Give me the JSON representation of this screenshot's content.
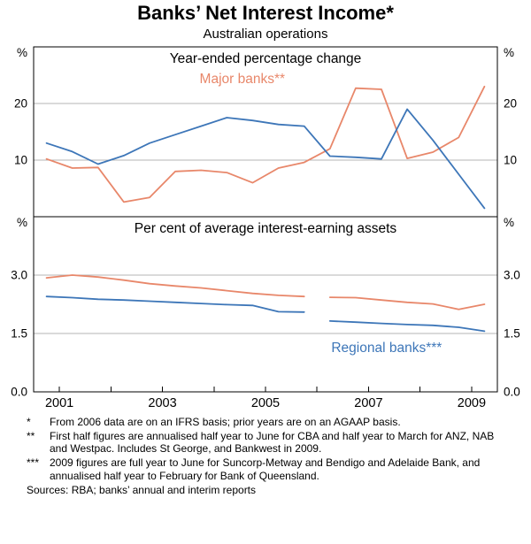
{
  "title": "Banks’ Net Interest Income*",
  "subtitle": "Australian operations",
  "colors": {
    "major_banks": "#e8876a",
    "regional_banks": "#3d76b8"
  },
  "chart_data": {
    "type": "line",
    "xlim": [
      2000.5,
      2009.5
    ],
    "x_year_ticks": [
      2001,
      2002,
      2003,
      2004,
      2005,
      2006,
      2007,
      2008,
      2009
    ],
    "x_year_labels": [
      "2001",
      "2003",
      "2005",
      "2007",
      "2009"
    ],
    "panels": [
      {
        "title": "Year-ended percentage change",
        "unit": "%",
        "ylim": [
          0,
          30
        ],
        "gridlines": [
          10,
          20
        ],
        "tick_labels": [
          {
            "value": 20,
            "label": "20"
          },
          {
            "value": 10,
            "label": "10"
          }
        ],
        "series": [
          {
            "name": "Major banks",
            "color": "#e8876a",
            "segments": [
              [
                [
                  2000.75,
                  10.2
                ],
                [
                  2001.25,
                  8.6
                ],
                [
                  2001.75,
                  8.7
                ],
                [
                  2002.25,
                  2.6
                ],
                [
                  2002.75,
                  3.4
                ],
                [
                  2003.25,
                  8.0
                ],
                [
                  2003.75,
                  8.2
                ],
                [
                  2004.25,
                  7.8
                ],
                [
                  2004.75,
                  6.0
                ],
                [
                  2005.25,
                  8.6
                ],
                [
                  2005.75,
                  9.6
                ],
                [
                  2006.25,
                  12.0
                ],
                [
                  2006.75,
                  22.7
                ],
                [
                  2007.25,
                  22.5
                ],
                [
                  2007.75,
                  10.3
                ],
                [
                  2008.25,
                  11.4
                ],
                [
                  2008.75,
                  14.0
                ],
                [
                  2009.25,
                  23.0
                ]
              ]
            ]
          },
          {
            "name": "Regional banks",
            "color": "#3d76b8",
            "segments": [
              [
                [
                  2000.75,
                  13.0
                ],
                [
                  2001.25,
                  11.5
                ],
                [
                  2001.75,
                  9.3
                ],
                [
                  2002.25,
                  10.8
                ],
                [
                  2002.75,
                  13.0
                ],
                [
                  2003.25,
                  14.5
                ],
                [
                  2003.75,
                  16.0
                ],
                [
                  2004.25,
                  17.5
                ],
                [
                  2004.75,
                  17.0
                ],
                [
                  2005.25,
                  16.3
                ],
                [
                  2005.75,
                  16.0
                ],
                [
                  2006.25,
                  10.7
                ],
                [
                  2006.75,
                  10.5
                ],
                [
                  2007.25,
                  10.2
                ],
                [
                  2007.75,
                  19.0
                ],
                [
                  2008.25,
                  13.5
                ],
                [
                  2008.75,
                  7.5
                ],
                [
                  2009.25,
                  1.5
                ]
              ]
            ]
          }
        ],
        "annotations": [
          {
            "text": "Major banks**",
            "color": "#e8876a",
            "x": 2004.55,
            "y": 23.6
          }
        ]
      },
      {
        "title": "Per cent of average interest-earning assets",
        "unit": "%",
        "ylim": [
          0,
          4.5
        ],
        "gridlines": [
          1.5,
          3.0
        ],
        "tick_labels": [
          {
            "value": 3.0,
            "label": "3.0"
          },
          {
            "value": 1.5,
            "label": "1.5"
          },
          {
            "value": 0,
            "label": "0.0"
          }
        ],
        "series": [
          {
            "name": "Major banks",
            "color": "#e8876a",
            "segments": [
              [
                [
                  2000.75,
                  2.93
                ],
                [
                  2001.25,
                  3.0
                ],
                [
                  2001.75,
                  2.95
                ],
                [
                  2002.25,
                  2.87
                ],
                [
                  2002.75,
                  2.78
                ],
                [
                  2003.25,
                  2.72
                ],
                [
                  2003.75,
                  2.67
                ],
                [
                  2004.25,
                  2.6
                ],
                [
                  2004.75,
                  2.53
                ],
                [
                  2005.25,
                  2.48
                ],
                [
                  2005.75,
                  2.45
                ]
              ],
              [
                [
                  2006.25,
                  2.43
                ],
                [
                  2006.75,
                  2.42
                ],
                [
                  2007.25,
                  2.36
                ],
                [
                  2007.75,
                  2.3
                ],
                [
                  2008.25,
                  2.26
                ],
                [
                  2008.75,
                  2.12
                ],
                [
                  2009.25,
                  2.25
                ]
              ]
            ]
          },
          {
            "name": "Regional banks",
            "color": "#3d76b8",
            "segments": [
              [
                [
                  2000.75,
                  2.45
                ],
                [
                  2001.25,
                  2.42
                ],
                [
                  2001.75,
                  2.38
                ],
                [
                  2002.25,
                  2.36
                ],
                [
                  2002.75,
                  2.33
                ],
                [
                  2003.25,
                  2.3
                ],
                [
                  2003.75,
                  2.27
                ],
                [
                  2004.25,
                  2.24
                ],
                [
                  2004.75,
                  2.22
                ],
                [
                  2005.25,
                  2.06
                ],
                [
                  2005.75,
                  2.05
                ]
              ],
              [
                [
                  2006.25,
                  1.82
                ],
                [
                  2006.75,
                  1.79
                ],
                [
                  2007.25,
                  1.76
                ],
                [
                  2007.75,
                  1.73
                ],
                [
                  2008.25,
                  1.71
                ],
                [
                  2008.75,
                  1.66
                ],
                [
                  2009.25,
                  1.56
                ]
              ]
            ]
          }
        ],
        "annotations": [
          {
            "text": "Regional banks***",
            "color": "#3d76b8",
            "x": 2007.35,
            "y": 1.02
          }
        ]
      }
    ]
  },
  "footnotes": [
    {
      "marker": "*",
      "text": "From 2006 data are on an IFRS basis; prior years are on an AGAAP basis."
    },
    {
      "marker": "**",
      "text": "First half figures are annualised half year to June for CBA and half year to March for ANZ, NAB and Westpac. Includes St George, and Bankwest in 2009."
    },
    {
      "marker": "***",
      "text": "2009 figures are full year to June for Suncorp-Metway and Bendigo and Adelaide Bank, and annualised half year to February for Bank of Queensland."
    }
  ],
  "sources": "Sources: RBA; banks’ annual and interim reports"
}
